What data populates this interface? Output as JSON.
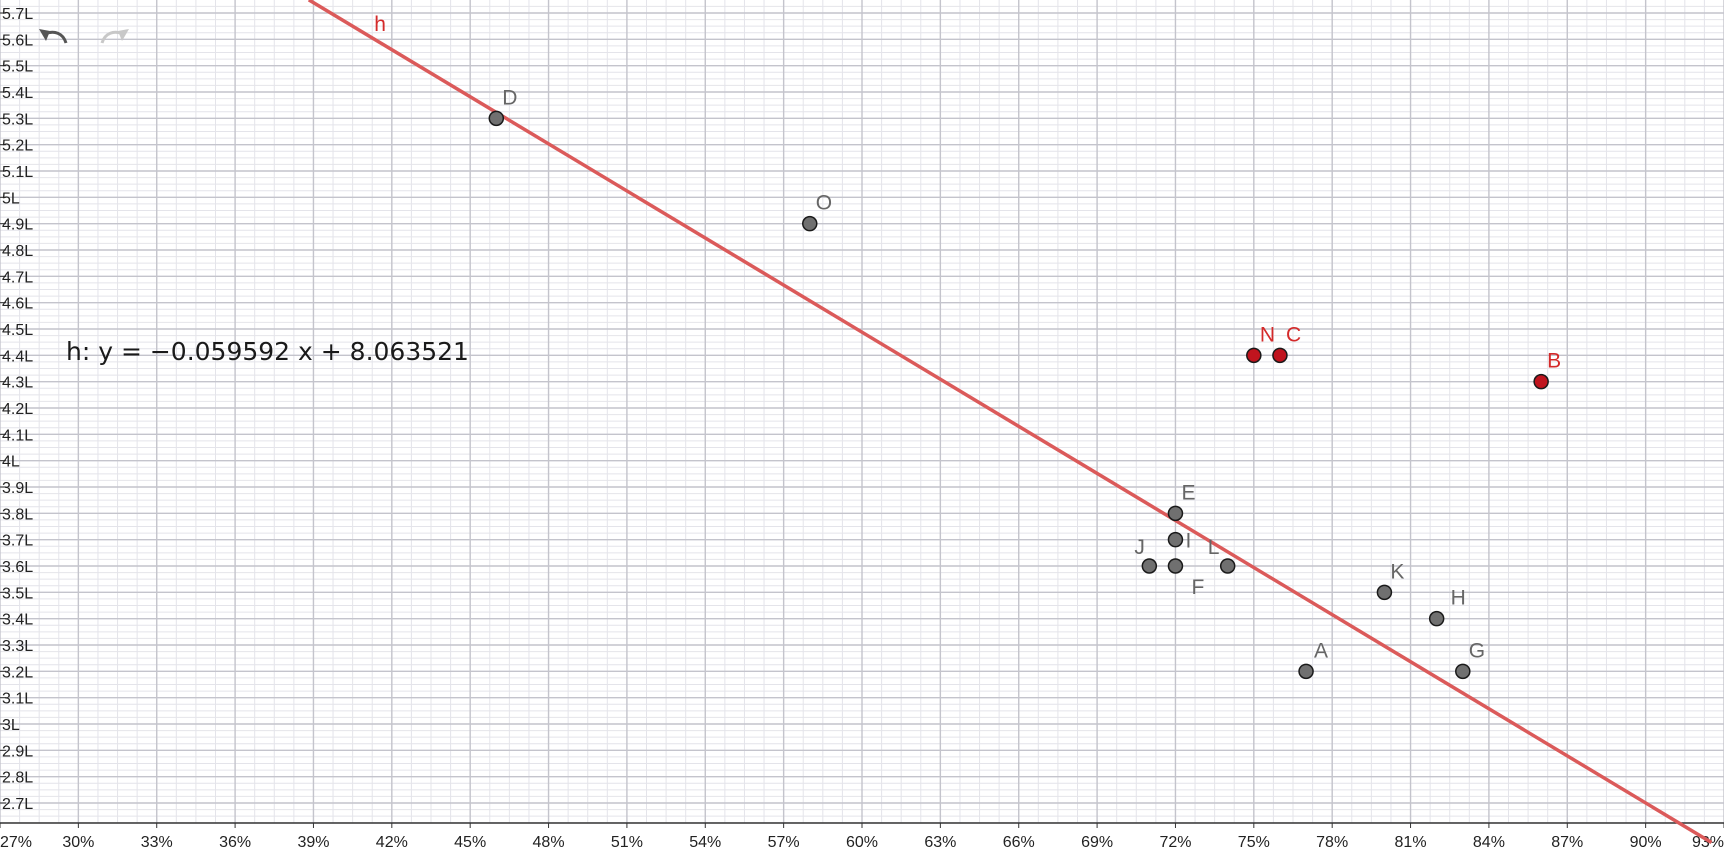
{
  "toolbar": {
    "undo_icon": "undo-icon",
    "redo_icon": "redo-icon"
  },
  "colors": {
    "line": "#db5a5a",
    "point_gray": "#707070",
    "point_red": "#c0141e",
    "label_gray": "#666666",
    "label_red": "#d42a2a",
    "grid_major": "#c4c4cc",
    "grid_minor": "#e4e4ea",
    "axis": "#333333"
  },
  "equation_label": "h: y = −0.059592 x + 8.063521",
  "chart_data": {
    "type": "scatter",
    "title": "",
    "xlabel": "",
    "ylabel": "",
    "xlim": [
      27,
      93
    ],
    "ylim": [
      2.6,
      5.75
    ],
    "x_ticks": [
      {
        "v": 27,
        "label": "27%"
      },
      {
        "v": 30,
        "label": "30%"
      },
      {
        "v": 33,
        "label": "33%"
      },
      {
        "v": 36,
        "label": "36%"
      },
      {
        "v": 39,
        "label": "39%"
      },
      {
        "v": 42,
        "label": "42%"
      },
      {
        "v": 45,
        "label": "45%"
      },
      {
        "v": 48,
        "label": "48%"
      },
      {
        "v": 51,
        "label": "51%"
      },
      {
        "v": 54,
        "label": "54%"
      },
      {
        "v": 57,
        "label": "57%"
      },
      {
        "v": 60,
        "label": "60%"
      },
      {
        "v": 63,
        "label": "63%"
      },
      {
        "v": 66,
        "label": "66%"
      },
      {
        "v": 69,
        "label": "69%"
      },
      {
        "v": 72,
        "label": "72%"
      },
      {
        "v": 75,
        "label": "75%"
      },
      {
        "v": 78,
        "label": "78%"
      },
      {
        "v": 81,
        "label": "81%"
      },
      {
        "v": 84,
        "label": "84%"
      },
      {
        "v": 87,
        "label": "87%"
      },
      {
        "v": 90,
        "label": "90%"
      },
      {
        "v": 93,
        "label": "93%"
      }
    ],
    "y_ticks": [
      {
        "v": 2.7,
        "label": "2.7L"
      },
      {
        "v": 2.8,
        "label": "2.8L"
      },
      {
        "v": 2.9,
        "label": "2.9L"
      },
      {
        "v": 3.0,
        "label": "3L"
      },
      {
        "v": 3.1,
        "label": "3.1L"
      },
      {
        "v": 3.2,
        "label": "3.2L"
      },
      {
        "v": 3.3,
        "label": "3.3L"
      },
      {
        "v": 3.4,
        "label": "3.4L"
      },
      {
        "v": 3.5,
        "label": "3.5L"
      },
      {
        "v": 3.6,
        "label": "3.6L"
      },
      {
        "v": 3.7,
        "label": "3.7L"
      },
      {
        "v": 3.8,
        "label": "3.8L"
      },
      {
        "v": 3.9,
        "label": "3.9L"
      },
      {
        "v": 4.0,
        "label": "4L"
      },
      {
        "v": 4.1,
        "label": "4.1L"
      },
      {
        "v": 4.2,
        "label": "4.2L"
      },
      {
        "v": 4.3,
        "label": "4.3L"
      },
      {
        "v": 4.4,
        "label": "4.4L"
      },
      {
        "v": 4.5,
        "label": "4.5L"
      },
      {
        "v": 4.6,
        "label": "4.6L"
      },
      {
        "v": 4.7,
        "label": "4.7L"
      },
      {
        "v": 4.8,
        "label": "4.8L"
      },
      {
        "v": 4.9,
        "label": "4.9L"
      },
      {
        "v": 5.0,
        "label": "5L"
      },
      {
        "v": 5.1,
        "label": "5.1L"
      },
      {
        "v": 5.2,
        "label": "5.2L"
      },
      {
        "v": 5.3,
        "label": "5.3L"
      },
      {
        "v": 5.4,
        "label": "5.4L"
      },
      {
        "v": 5.5,
        "label": "5.5L"
      },
      {
        "v": 5.6,
        "label": "5.6L"
      },
      {
        "v": 5.7,
        "label": "5.7L"
      }
    ],
    "grid": true,
    "points": [
      {
        "name": "D",
        "x": 46,
        "y": 5.3,
        "color": "gray"
      },
      {
        "name": "O",
        "x": 58,
        "y": 4.9,
        "color": "gray"
      },
      {
        "name": "N",
        "x": 75,
        "y": 4.4,
        "color": "red"
      },
      {
        "name": "C",
        "x": 76,
        "y": 4.4,
        "color": "red"
      },
      {
        "name": "B",
        "x": 86,
        "y": 4.3,
        "color": "red"
      },
      {
        "name": "E",
        "x": 72,
        "y": 3.8,
        "color": "gray"
      },
      {
        "name": "I",
        "x": 72,
        "y": 3.7,
        "color": "gray"
      },
      {
        "name": "J",
        "x": 71,
        "y": 3.6,
        "color": "gray"
      },
      {
        "name": "F",
        "x": 72,
        "y": 3.6,
        "color": "gray"
      },
      {
        "name": "L",
        "x": 74,
        "y": 3.6,
        "color": "gray"
      },
      {
        "name": "K",
        "x": 80,
        "y": 3.5,
        "color": "gray"
      },
      {
        "name": "H",
        "x": 82,
        "y": 3.4,
        "color": "gray"
      },
      {
        "name": "A",
        "x": 77,
        "y": 3.2,
        "color": "gray"
      },
      {
        "name": "G",
        "x": 83,
        "y": 3.2,
        "color": "gray"
      }
    ],
    "lines": [
      {
        "name": "h",
        "slope": -0.059592,
        "intercept": 8.063521
      }
    ]
  }
}
